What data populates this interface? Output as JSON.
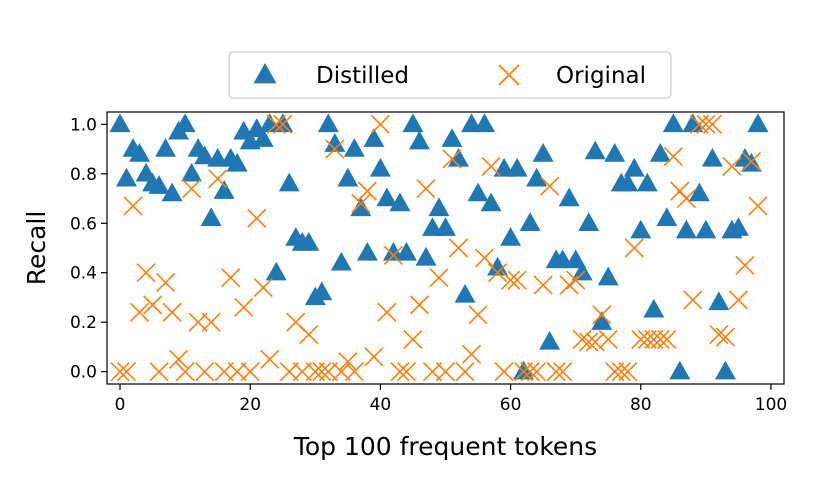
{
  "chart_data": {
    "type": "scatter",
    "title": "",
    "xlabel": "Top 100 frequent tokens",
    "ylabel": "Recall",
    "xlim": [
      -2,
      102
    ],
    "ylim": [
      -0.05,
      1.05
    ],
    "xticks": [
      0,
      20,
      40,
      60,
      80,
      100
    ],
    "yticks": [
      0.0,
      0.2,
      0.4,
      0.6,
      0.8,
      1.0
    ],
    "xtick_labels": [
      "0",
      "20",
      "40",
      "60",
      "80",
      "100"
    ],
    "ytick_labels": [
      "0.0",
      "0.2",
      "0.4",
      "0.6",
      "0.8",
      "1.0"
    ],
    "legend_position": "top-center-outside",
    "series": [
      {
        "name": "Distilled",
        "marker": "triangle",
        "color": "#1f77b4",
        "x": [
          0,
          1,
          2,
          3,
          4,
          5,
          6,
          7,
          8,
          9,
          10,
          11,
          12,
          13,
          14,
          15,
          16,
          17,
          18,
          19,
          20,
          21,
          22,
          23,
          24,
          25,
          26,
          27,
          28,
          29,
          30,
          31,
          32,
          33,
          34,
          35,
          36,
          37,
          38,
          39,
          40,
          41,
          42,
          43,
          44,
          45,
          46,
          47,
          48,
          49,
          50,
          51,
          52,
          53,
          54,
          55,
          56,
          57,
          58,
          59,
          60,
          61,
          62,
          63,
          64,
          65,
          66,
          67,
          68,
          69,
          70,
          71,
          72,
          73,
          74,
          75,
          76,
          77,
          78,
          79,
          80,
          81,
          82,
          83,
          84,
          85,
          86,
          87,
          88,
          89,
          90,
          91,
          92,
          93,
          94,
          95,
          96,
          97,
          98
        ],
        "y": [
          1.0,
          0.78,
          0.9,
          0.88,
          0.8,
          0.76,
          0.75,
          0.9,
          0.72,
          0.97,
          1.0,
          0.8,
          0.9,
          0.87,
          0.62,
          0.86,
          0.73,
          0.86,
          0.84,
          0.97,
          0.93,
          0.98,
          0.94,
          1.0,
          0.4,
          1.0,
          0.76,
          0.54,
          0.52,
          0.52,
          0.3,
          0.32,
          1.0,
          0.92,
          0.44,
          0.78,
          0.9,
          0.66,
          0.48,
          0.94,
          0.82,
          0.7,
          0.48,
          0.68,
          0.48,
          1.0,
          0.93,
          0.46,
          0.58,
          0.66,
          0.58,
          0.94,
          0.86,
          0.31,
          1.0,
          0.72,
          1.0,
          0.68,
          0.42,
          0.82,
          0.54,
          0.82,
          0.0,
          0.6,
          0.78,
          0.88,
          0.12,
          0.45,
          0.45,
          0.7,
          0.45,
          0.4,
          0.6,
          0.89,
          0.2,
          0.38,
          0.88,
          0.76,
          0.76,
          0.82,
          0.57,
          0.76,
          0.25,
          0.88,
          0.62,
          1.0,
          0.0,
          0.57,
          1.0,
          0.72,
          0.57,
          0.86,
          0.28,
          0.0,
          0.57,
          0.58,
          0.86,
          0.84,
          1.0
        ]
      },
      {
        "name": "Original",
        "marker": "x",
        "color": "#ff7f0e",
        "x": [
          0,
          1,
          2,
          3,
          4,
          5,
          6,
          7,
          8,
          9,
          10,
          11,
          12,
          13,
          14,
          15,
          16,
          17,
          18,
          19,
          20,
          21,
          22,
          23,
          24,
          25,
          26,
          27,
          28,
          29,
          30,
          31,
          32,
          33,
          34,
          35,
          36,
          37,
          38,
          39,
          40,
          41,
          42,
          43,
          44,
          45,
          46,
          47,
          48,
          49,
          50,
          51,
          52,
          53,
          54,
          55,
          56,
          57,
          58,
          59,
          60,
          61,
          62,
          63,
          64,
          65,
          66,
          67,
          68,
          69,
          70,
          71,
          72,
          73,
          74,
          75,
          76,
          77,
          78,
          79,
          80,
          81,
          82,
          83,
          84,
          85,
          86,
          87,
          88,
          89,
          90,
          91,
          92,
          93,
          94,
          95,
          96,
          97,
          98
        ],
        "y": [
          0.0,
          0.0,
          0.67,
          0.24,
          0.4,
          0.27,
          0.0,
          0.36,
          0.24,
          0.05,
          0.0,
          0.74,
          0.2,
          0.0,
          0.2,
          0.78,
          0.0,
          0.38,
          0.0,
          0.26,
          0.0,
          0.62,
          0.34,
          0.05,
          1.0,
          1.0,
          0.0,
          0.2,
          0.0,
          0.15,
          0.0,
          0.0,
          0.0,
          0.9,
          0.0,
          0.04,
          0.0,
          0.68,
          0.73,
          0.06,
          1.0,
          0.24,
          0.47,
          0.0,
          0.0,
          0.13,
          0.27,
          0.74,
          0.0,
          0.38,
          0.0,
          0.86,
          0.5,
          0.0,
          0.07,
          0.23,
          0.46,
          0.83,
          0.4,
          0.0,
          0.37,
          0.37,
          0.0,
          0.0,
          0.0,
          0.35,
          0.75,
          0.0,
          0.0,
          0.35,
          0.37,
          0.13,
          0.12,
          0.12,
          0.23,
          0.13,
          0.0,
          0.0,
          0.0,
          0.5,
          0.13,
          0.13,
          0.13,
          0.13,
          0.13,
          0.87,
          0.73,
          0.7,
          0.29,
          1.0,
          1.0,
          1.0,
          0.15,
          0.14,
          0.83,
          0.29,
          0.43,
          0.85,
          0.67
        ]
      }
    ]
  }
}
